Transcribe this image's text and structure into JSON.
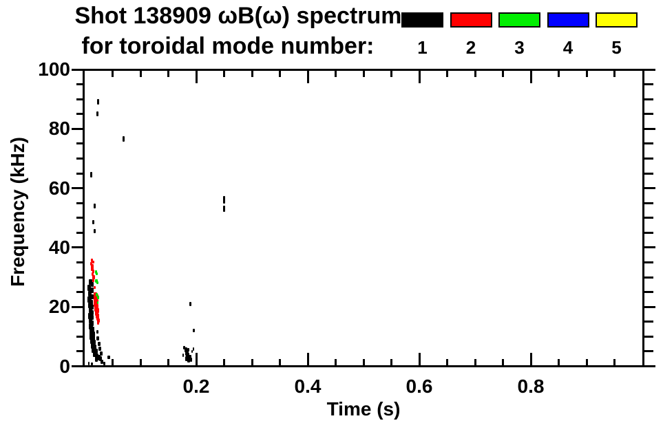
{
  "chart_data": {
    "type": "scatter",
    "title_line1": "Shot 138909 ωB(ω) spectrum",
    "title_line2": "for toroidal mode number:",
    "xlabel": "Time (s)",
    "ylabel": "Frequency (kHz)",
    "xlim": [
      0.0,
      1.0
    ],
    "ylim": [
      0,
      100
    ],
    "grid": false,
    "legend_position": "top-right",
    "x_major_ticks": [
      0.2,
      0.4,
      0.6,
      0.8
    ],
    "x_major_tick_labels": [
      "0.2",
      "0.4",
      "0.6",
      "0.8"
    ],
    "x_minor_tick_step": 0.05,
    "y_major_ticks": [
      0,
      20,
      40,
      60,
      80,
      100
    ],
    "y_major_tick_labels": [
      "0",
      "20",
      "40",
      "60",
      "80",
      "100"
    ],
    "y_minor_tick_step": 5,
    "legend": {
      "items": [
        {
          "label": "1",
          "color": "#000000"
        },
        {
          "label": "2",
          "color": "#ff0000"
        },
        {
          "label": "3",
          "color": "#00ee00"
        },
        {
          "label": "4",
          "color": "#0000ff"
        },
        {
          "label": "5",
          "color": "#ffff00"
        }
      ]
    },
    "series": [
      {
        "name": "toroidal mode n=1",
        "color": "#000000",
        "points": [
          [
            0.024,
            89,
            3,
            8
          ],
          [
            0.023,
            85,
            3,
            7
          ],
          [
            0.07,
            76.5,
            3,
            8
          ],
          [
            0.012,
            64.5,
            3,
            8
          ],
          [
            0.018,
            54,
            3,
            7
          ],
          [
            0.016,
            48.5,
            3,
            6
          ],
          [
            0.018,
            45.5,
            3,
            6
          ],
          [
            0.25,
            56,
            3,
            11
          ],
          [
            0.25,
            53,
            3,
            9
          ],
          [
            0.19,
            21,
            3,
            6
          ],
          [
            0.196,
            12,
            3,
            5
          ],
          [
            0.01,
            28.5,
            5,
            8
          ],
          [
            0.013,
            27.5,
            4,
            7
          ],
          [
            0.008,
            26.5,
            5,
            9
          ],
          [
            0.012,
            25.5,
            6,
            8
          ],
          [
            0.009,
            24.5,
            5,
            8
          ],
          [
            0.013,
            23.5,
            5,
            7
          ],
          [
            0.009,
            22.5,
            6,
            9
          ],
          [
            0.012,
            21.5,
            5,
            8
          ],
          [
            0.009,
            20.5,
            5,
            8
          ],
          [
            0.013,
            20,
            4,
            7
          ],
          [
            0.01,
            19,
            5,
            8
          ],
          [
            0.013,
            18,
            5,
            7
          ],
          [
            0.01,
            17,
            6,
            9
          ],
          [
            0.014,
            16.5,
            4,
            7
          ],
          [
            0.011,
            15.5,
            5,
            8
          ],
          [
            0.013,
            14.5,
            5,
            8
          ],
          [
            0.011,
            13.5,
            6,
            9
          ],
          [
            0.014,
            12.5,
            5,
            8
          ],
          [
            0.012,
            11.5,
            6,
            9
          ],
          [
            0.015,
            11,
            5,
            7
          ],
          [
            0.012,
            10,
            6,
            9
          ],
          [
            0.016,
            9.5,
            5,
            7
          ],
          [
            0.013,
            8.5,
            6,
            9
          ],
          [
            0.017,
            8,
            5,
            7
          ],
          [
            0.015,
            7,
            6,
            9
          ],
          [
            0.018,
            6.5,
            5,
            7
          ],
          [
            0.016,
            5.5,
            6,
            8
          ],
          [
            0.02,
            5,
            5,
            7
          ],
          [
            0.018,
            4,
            6,
            8
          ],
          [
            0.022,
            3.5,
            5,
            7
          ],
          [
            0.025,
            3,
            5,
            8
          ],
          [
            0.021,
            2.2,
            4,
            6
          ],
          [
            0.028,
            2.5,
            4,
            7
          ],
          [
            0.031,
            1.5,
            4,
            6
          ],
          [
            0.035,
            1,
            3,
            5
          ],
          [
            0.043,
            3,
            4,
            5
          ],
          [
            0.008,
            1,
            2,
            5
          ],
          [
            0.013,
            0.7,
            3,
            4
          ],
          [
            0.026,
            7.5,
            4,
            6
          ],
          [
            0.024,
            9.5,
            4,
            6
          ],
          [
            0.023,
            11.5,
            3,
            5
          ],
          [
            0.027,
            5.8,
            4,
            6
          ],
          [
            0.03,
            4.2,
            4,
            6
          ],
          [
            0.179,
            6.3,
            3,
            5
          ],
          [
            0.181,
            5.5,
            4,
            7
          ],
          [
            0.183,
            4.6,
            5,
            8
          ],
          [
            0.185,
            3.6,
            5,
            8
          ],
          [
            0.183,
            2.6,
            4,
            7
          ],
          [
            0.187,
            2.1,
            4,
            8
          ],
          [
            0.189,
            3.1,
            4,
            6
          ],
          [
            0.191,
            2.3,
            3,
            6
          ],
          [
            0.186,
            5.6,
            3,
            5
          ],
          [
            0.192,
            4.9,
            2,
            4
          ],
          [
            0.195,
            5.9,
            2,
            5
          ],
          [
            0.177,
            3.6,
            2,
            5
          ]
        ]
      },
      {
        "name": "toroidal mode n=2",
        "color": "#ff0000",
        "points": [
          [
            0.013,
            35.8,
            3,
            5
          ],
          [
            0.016,
            35.2,
            3,
            4
          ],
          [
            0.012,
            34.5,
            3,
            5
          ],
          [
            0.014,
            33.8,
            4,
            6
          ],
          [
            0.013,
            32.8,
            4,
            6
          ],
          [
            0.015,
            32,
            3,
            5
          ],
          [
            0.014,
            31,
            3,
            5
          ],
          [
            0.016,
            30,
            4,
            6
          ],
          [
            0.015,
            29,
            3,
            5
          ],
          [
            0.018,
            26.5,
            3,
            4
          ],
          [
            0.019,
            24,
            5,
            7
          ],
          [
            0.021,
            23.3,
            5,
            7
          ],
          [
            0.02,
            22.5,
            6,
            8
          ],
          [
            0.022,
            21.8,
            5,
            7
          ],
          [
            0.02,
            21,
            6,
            9
          ],
          [
            0.022,
            20.2,
            5,
            7
          ],
          [
            0.021,
            19.4,
            6,
            8
          ],
          [
            0.023,
            18.7,
            5,
            7
          ],
          [
            0.022,
            17.9,
            5,
            8
          ],
          [
            0.023,
            17,
            5,
            7
          ],
          [
            0.024,
            16.2,
            4,
            7
          ],
          [
            0.025,
            15.4,
            4,
            6
          ],
          [
            0.024,
            14.7,
            3,
            6
          ]
        ]
      },
      {
        "name": "toroidal mode n=3",
        "color": "#00dd00",
        "points": [
          [
            0.02,
            31.8,
            3,
            5
          ],
          [
            0.022,
            31.2,
            3,
            4
          ],
          [
            0.021,
            28.8,
            4,
            5
          ],
          [
            0.023,
            28.2,
            3,
            4
          ],
          [
            0.022,
            24,
            3,
            5
          ],
          [
            0.024,
            23.2,
            3,
            5
          ],
          [
            0.023,
            21.5,
            2,
            4
          ]
        ]
      },
      {
        "name": "toroidal mode n=4",
        "color": "#0000ff",
        "points": []
      },
      {
        "name": "toroidal mode n=5",
        "color": "#ffff00",
        "points": []
      }
    ]
  }
}
